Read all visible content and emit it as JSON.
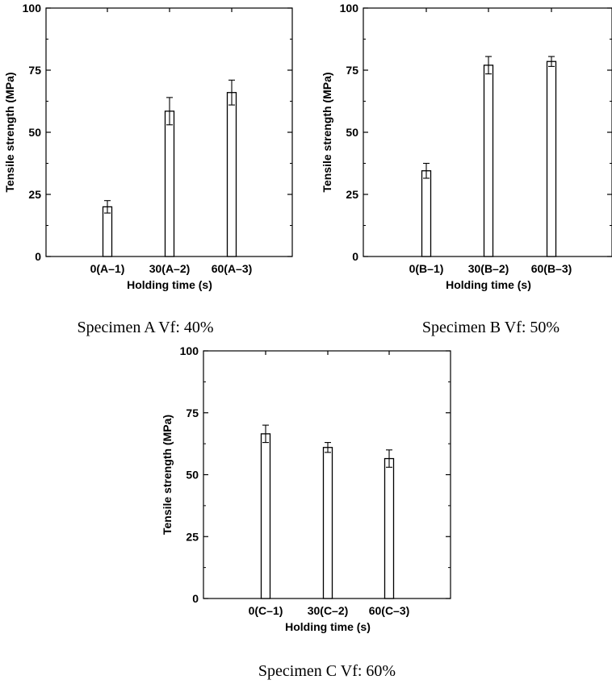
{
  "chart_data": [
    {
      "type": "bar",
      "categories": [
        "0(A–1)",
        "30(A–2)",
        "60(A–3)"
      ],
      "values": [
        20,
        58.5,
        66
      ],
      "error": [
        2.5,
        5.5,
        5
      ],
      "xlabel": "Holding time (s)",
      "ylabel": "Tensile strength (MPa)",
      "ylim": [
        0,
        100
      ],
      "yticks": [
        0,
        25,
        50,
        75,
        100
      ],
      "caption": "Specimen A Vf: 40%"
    },
    {
      "type": "bar",
      "categories": [
        "0(B–1)",
        "30(B–2)",
        "60(B–3)"
      ],
      "values": [
        34.5,
        77,
        78.5
      ],
      "error": [
        3,
        3.5,
        2
      ],
      "xlabel": "Holding time (s)",
      "ylabel": "Tensile strength (MPa)",
      "ylim": [
        0,
        100
      ],
      "yticks": [
        0,
        25,
        50,
        75,
        100
      ],
      "caption": "Specimen B Vf: 50%"
    },
    {
      "type": "bar",
      "categories": [
        "0(C–1)",
        "30(C–2)",
        "60(C–3)"
      ],
      "values": [
        66.5,
        61,
        56.5
      ],
      "error": [
        3.5,
        2,
        3.5
      ],
      "xlabel": "Holding time (s)",
      "ylabel": "Tensile strength (MPa)",
      "ylim": [
        0,
        100
      ],
      "yticks": [
        0,
        25,
        50,
        75,
        100
      ],
      "caption": "Specimen C Vf: 60%"
    }
  ]
}
